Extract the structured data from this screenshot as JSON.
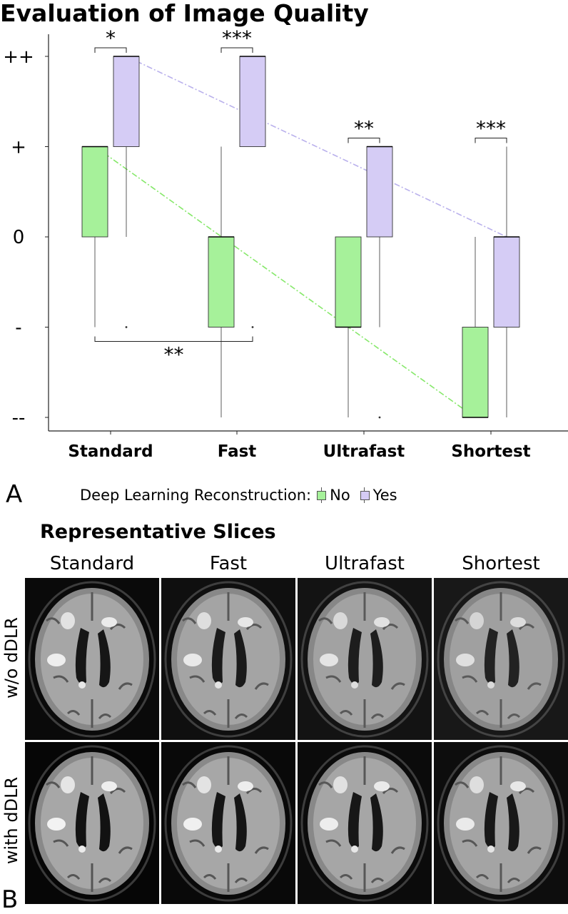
{
  "chart_data": {
    "type": "boxplot",
    "title": "Evaluation of Image Quality",
    "ylabel": "",
    "xlabel": "",
    "y_levels": [
      "--",
      "-",
      "0",
      "+",
      "++"
    ],
    "ylim": [
      -2,
      2
    ],
    "categories": [
      "Standard",
      "Fast",
      "Ultrafast",
      "Shortest"
    ],
    "legend": {
      "title": "Deep Learning Reconstruction:",
      "placement": "bottom",
      "entries": [
        {
          "name": "No",
          "color": "#a6f19a"
        },
        {
          "name": "Yes",
          "color": "#d5ccf5"
        }
      ]
    },
    "series": [
      {
        "name": "No",
        "color": "#a6f19a",
        "trend_color": "#86e86a",
        "boxes": [
          {
            "category": "Standard",
            "whisker_low": -1,
            "q1": 0,
            "median": 1,
            "q3": 1,
            "whisker_high": 1,
            "outliers": []
          },
          {
            "category": "Fast",
            "whisker_low": -2,
            "q1": -1,
            "median": 0,
            "q3": 0,
            "whisker_high": 1,
            "outliers": []
          },
          {
            "category": "Ultrafast",
            "whisker_low": -2,
            "q1": -1,
            "median": -1,
            "q3": 0,
            "whisker_high": 0,
            "outliers": []
          },
          {
            "category": "Shortest",
            "whisker_low": -2,
            "q1": -2,
            "median": -2,
            "q3": -1,
            "whisker_high": 0,
            "outliers": []
          }
        ]
      },
      {
        "name": "Yes",
        "color": "#d5ccf5",
        "trend_color": "#b9b0ec",
        "boxes": [
          {
            "category": "Standard",
            "whisker_low": 0,
            "q1": 1,
            "median": 2,
            "q3": 2,
            "whisker_high": 2,
            "outliers": [
              -1
            ]
          },
          {
            "category": "Fast",
            "whisker_low": 1,
            "q1": 1,
            "median": 2,
            "q3": 2,
            "whisker_high": 2,
            "outliers": [
              -1
            ]
          },
          {
            "category": "Ultrafast",
            "whisker_low": -1,
            "q1": 0,
            "median": 1,
            "q3": 1,
            "whisker_high": 1,
            "outliers": [
              -2
            ]
          },
          {
            "category": "Shortest",
            "whisker_low": -2,
            "q1": -1,
            "median": 0,
            "q3": 0,
            "whisker_high": 1,
            "outliers": []
          }
        ]
      }
    ],
    "significance": [
      {
        "label": "*",
        "from_category": "Standard",
        "from_series": "No",
        "to_category": "Standard",
        "to_series": "Yes",
        "position": "top"
      },
      {
        "label": "***",
        "from_category": "Fast",
        "from_series": "No",
        "to_category": "Fast",
        "to_series": "Yes",
        "position": "top"
      },
      {
        "label": "**",
        "from_category": "Ultrafast",
        "from_series": "No",
        "to_category": "Ultrafast",
        "to_series": "Yes",
        "position": "top"
      },
      {
        "label": "***",
        "from_category": "Shortest",
        "from_series": "No",
        "to_category": "Shortest",
        "to_series": "Yes",
        "position": "top"
      },
      {
        "label": "**",
        "from_category": "Standard",
        "from_series": "No",
        "to_category": "Fast",
        "to_series": "Yes",
        "position": "bottom"
      }
    ],
    "grid": false
  },
  "panel_a": "A",
  "panel_b": "B",
  "slices": {
    "title": "Representative Slices",
    "columns": [
      "Standard",
      "Fast",
      "Ultrafast",
      "Shortest"
    ],
    "rows": [
      "w/o dDLR",
      "with dDLR"
    ]
  }
}
